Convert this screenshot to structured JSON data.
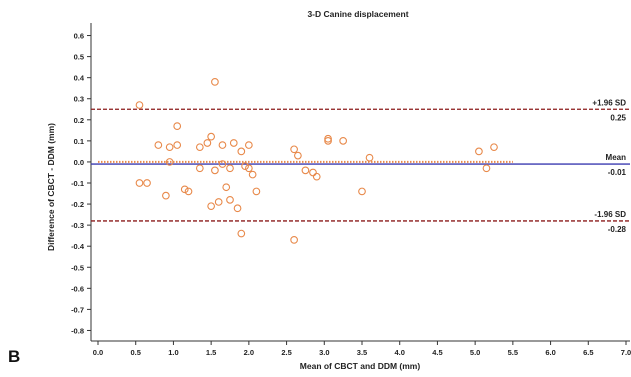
{
  "panel_label": "B",
  "chart_data": {
    "type": "scatter",
    "title": "3-D Canine displacement",
    "xlabel": "Mean of CBCT and DDM (mm)",
    "ylabel": "Difference of CBCT - DDM (mm)",
    "xlim": [
      0,
      7
    ],
    "ylim": [
      -0.85,
      0.65
    ],
    "xticks": [
      "0.0",
      "0.5",
      "1.0",
      "1.5",
      "2.0",
      "2.5",
      "3.0",
      "3.5",
      "4.0",
      "4.5",
      "5.0",
      "5.5",
      "6.0",
      "6.5",
      "7.0"
    ],
    "yticks": [
      "0.6",
      "0.5",
      "0.4",
      "0.3",
      "0.2",
      "0.1",
      "0.0",
      "-0.1",
      "-0.2",
      "-0.3",
      "-0.4",
      "-0.5",
      "-0.6",
      "-0.7",
      "-0.8"
    ],
    "grid": false,
    "colors": {
      "points": "#e8894a",
      "limits": "#8b1a1a",
      "mean": "#3a3ab0",
      "zero_dotted": "#e8894a"
    },
    "reference_lines": [
      {
        "kind": "upper_loa",
        "value": 0.25,
        "label": "+1.96 SD",
        "value_label": "0.25"
      },
      {
        "kind": "mean",
        "value": -0.01,
        "label": "Mean",
        "value_label": "-0.01"
      },
      {
        "kind": "lower_loa",
        "value": -0.28,
        "label": "-1.96 SD",
        "value_label": "-0.28"
      }
    ],
    "zero_line_xrange": [
      0,
      5.5
    ],
    "points": [
      {
        "x": 0.55,
        "y": 0.27
      },
      {
        "x": 1.55,
        "y": 0.38
      },
      {
        "x": 1.05,
        "y": 0.17
      },
      {
        "x": 1.5,
        "y": 0.12
      },
      {
        "x": 1.35,
        "y": 0.07
      },
      {
        "x": 1.45,
        "y": 0.09
      },
      {
        "x": 0.8,
        "y": 0.08
      },
      {
        "x": 0.95,
        "y": 0.07
      },
      {
        "x": 1.05,
        "y": 0.08
      },
      {
        "x": 1.65,
        "y": 0.08
      },
      {
        "x": 1.8,
        "y": 0.09
      },
      {
        "x": 1.9,
        "y": 0.05
      },
      {
        "x": 2.0,
        "y": 0.08
      },
      {
        "x": 2.6,
        "y": 0.06
      },
      {
        "x": 2.65,
        "y": 0.03
      },
      {
        "x": 3.05,
        "y": 0.11
      },
      {
        "x": 3.05,
        "y": 0.1
      },
      {
        "x": 3.25,
        "y": 0.1
      },
      {
        "x": 3.6,
        "y": 0.02
      },
      {
        "x": 5.05,
        "y": 0.05
      },
      {
        "x": 5.25,
        "y": 0.07
      },
      {
        "x": 5.15,
        "y": -0.03
      },
      {
        "x": 0.95,
        "y": 0.0
      },
      {
        "x": 1.55,
        "y": -0.04
      },
      {
        "x": 1.65,
        "y": -0.01
      },
      {
        "x": 1.75,
        "y": -0.03
      },
      {
        "x": 1.95,
        "y": -0.02
      },
      {
        "x": 2.0,
        "y": -0.03
      },
      {
        "x": 2.05,
        "y": -0.06
      },
      {
        "x": 2.75,
        "y": -0.04
      },
      {
        "x": 2.85,
        "y": -0.05
      },
      {
        "x": 2.9,
        "y": -0.07
      },
      {
        "x": 0.55,
        "y": -0.1
      },
      {
        "x": 0.65,
        "y": -0.1
      },
      {
        "x": 1.15,
        "y": -0.13
      },
      {
        "x": 1.2,
        "y": -0.14
      },
      {
        "x": 1.35,
        "y": -0.03
      },
      {
        "x": 1.7,
        "y": -0.12
      },
      {
        "x": 2.1,
        "y": -0.14
      },
      {
        "x": 0.9,
        "y": -0.16
      },
      {
        "x": 1.5,
        "y": -0.21
      },
      {
        "x": 1.6,
        "y": -0.19
      },
      {
        "x": 1.75,
        "y": -0.18
      },
      {
        "x": 1.85,
        "y": -0.22
      },
      {
        "x": 3.5,
        "y": -0.14
      },
      {
        "x": 1.9,
        "y": -0.34
      },
      {
        "x": 2.6,
        "y": -0.37
      }
    ]
  }
}
